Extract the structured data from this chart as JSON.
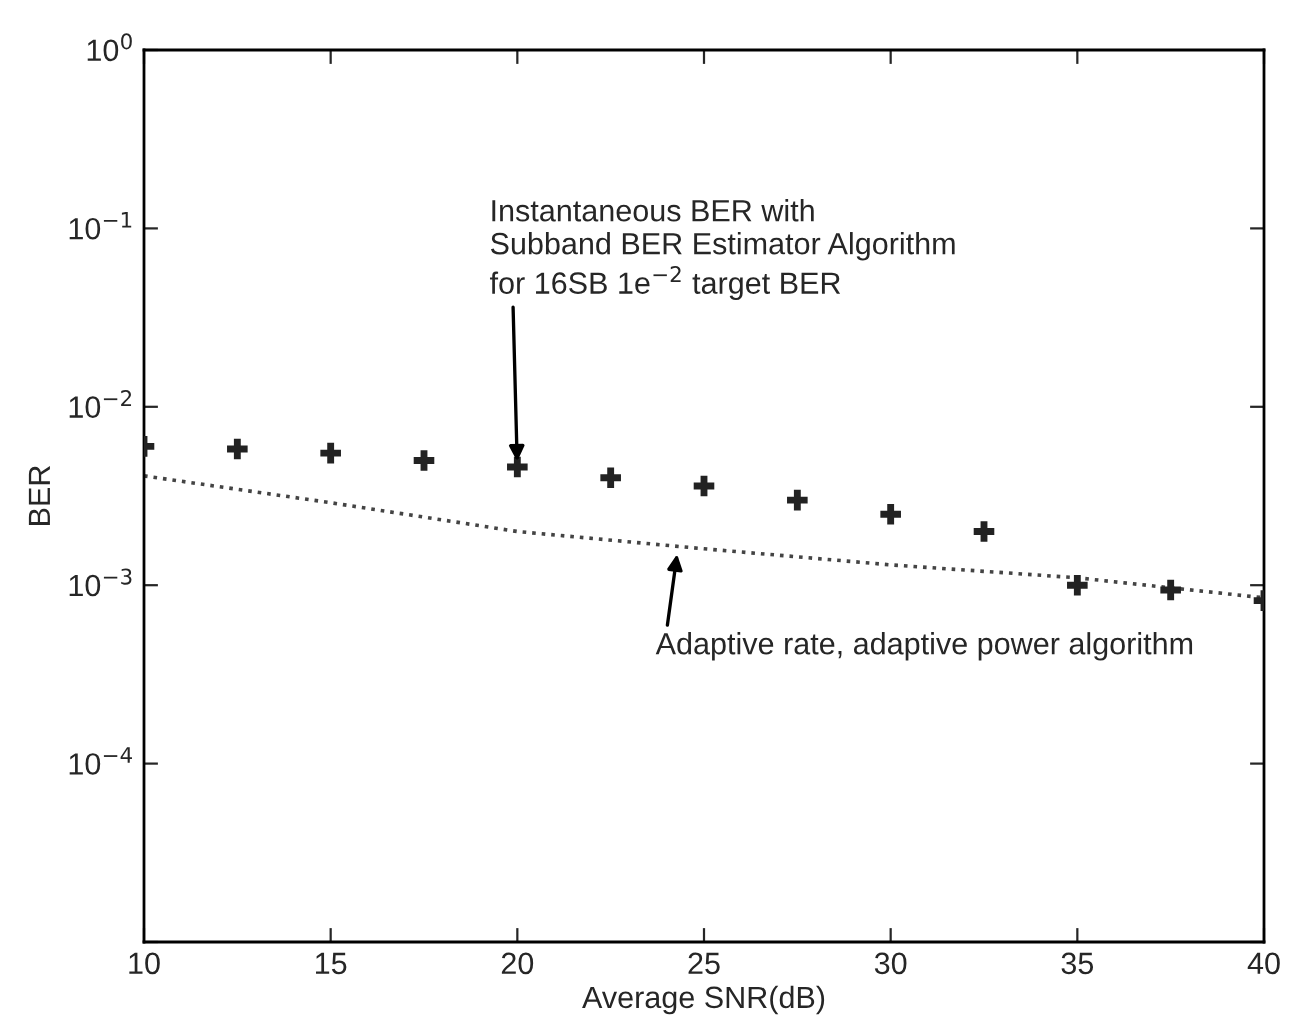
{
  "chart_data": {
    "type": "line",
    "xlabel": "Average SNR(dB)",
    "ylabel": "BER",
    "log": "y",
    "grid": false,
    "xlim": [
      10,
      40
    ],
    "xticks": [
      10,
      15,
      20,
      25,
      30,
      35,
      40
    ],
    "ylim": [
      1e-05,
      1
    ],
    "yticks": [
      {
        "value": 1,
        "label": "10$^{0}$"
      },
      {
        "value": 0.1,
        "label": "10$^{−1}$"
      },
      {
        "value": 0.01,
        "label": "10$^{−2}$"
      },
      {
        "value": 0.001,
        "label": "10$^{−3}$"
      },
      {
        "value": 0.0001,
        "label": "10$^{−4}$"
      },
      {
        "value": 1e-05,
        "label": null
      }
    ],
    "series": [
      {
        "type": "scatter",
        "color": "#222222",
        "marker": "cross",
        "x": [
          10,
          12.5,
          15,
          17.5,
          20,
          22.5,
          25,
          27.5,
          30,
          32.5,
          35,
          37.5,
          40
        ],
        "values": [
          0.006,
          0.0058,
          0.0055,
          0.005,
          0.0046,
          0.004,
          0.0036,
          0.003,
          0.0025,
          0.002,
          0.001,
          0.00094,
          0.00082
        ]
      },
      {
        "color": "#444444",
        "line_style": "dotted",
        "marker": "none",
        "x": [
          10,
          15,
          20,
          25,
          30,
          35,
          40
        ],
        "values": [
          0.0041,
          0.0029,
          0.002,
          0.0016,
          0.0013,
          0.0011,
          0.00085
        ]
      }
    ],
    "annotations": [
      {
        "text": "Instantaneous BER with\nSubband BER Estimator Algorithm\nfor 16SB 1e$^{−2}$ target BER",
        "x": 20,
        "y": 0.0046
      },
      {
        "text": "Adaptive rate, adaptive power algorithm",
        "x": 24.3,
        "y": 0.0016
      }
    ]
  }
}
